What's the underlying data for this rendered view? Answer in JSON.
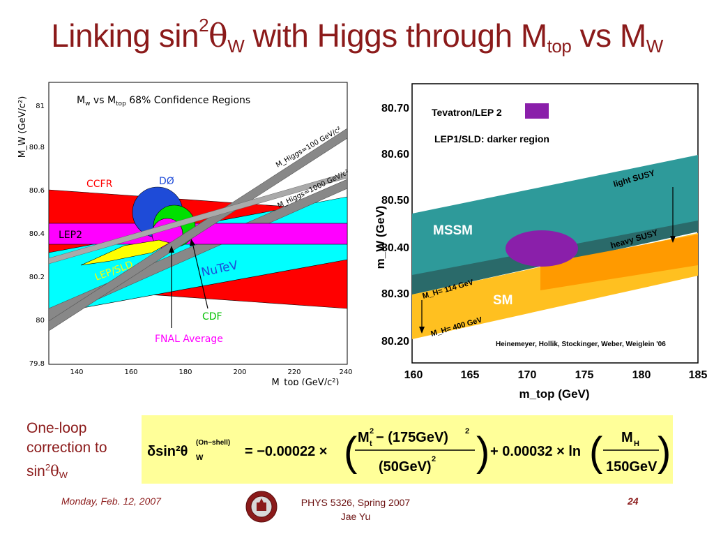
{
  "title": {
    "pre": "Linking sin",
    "sup": "2",
    "theta": "θ",
    "sub_w": "W",
    "mid": " with Higgs through M",
    "sub_top": "top",
    "post": " vs M",
    "sub_w2": "W"
  },
  "left_plot": {
    "title": "M_W vs M_top 68% Confidence Regions",
    "title_parts": {
      "a": "M",
      "b": "w",
      "c": " vs M",
      "d": "top",
      "e": " 68% Confidence Regions"
    },
    "ylabel": "M_W (GeV/c²)",
    "xlabel": "M_top (GeV/c²)",
    "yticks": [
      "81",
      "80.8",
      "80.6",
      "80.4",
      "80.2",
      "80",
      "79.8"
    ],
    "xticks": [
      "140",
      "160",
      "180",
      "200",
      "220",
      "240"
    ],
    "labels": {
      "ccfr": "CCFR",
      "d0": "DØ",
      "lep2": "LEP2",
      "lep_sld": "LEP/SLD",
      "nutev": "NuTeV",
      "cdf": "CDF",
      "fnal": "FNAL Average",
      "mhiggs100": "M_Higgs=100 GeV/c²",
      "mhiggs1000": "M_Higgs=1000 GeV/c²"
    },
    "colors": {
      "ccfr": "#ff0000",
      "nutev": "#00ffff",
      "lep2": "#ff00ff",
      "d0": "#1e4bd8",
      "cdf": "#00e000",
      "fnal": "#ff00ff",
      "lepsld": "#ffff00"
    }
  },
  "right_plot": {
    "ylabel": "m_W (GeV)",
    "xlabel": "m_top (GeV)",
    "yticks": [
      "80.70",
      "80.60",
      "80.50",
      "80.40",
      "80.30",
      "80.20"
    ],
    "xticks": [
      "160",
      "165",
      "170",
      "175",
      "180",
      "185"
    ],
    "legend1": "Tevatron/LEP 2",
    "legend2": "LEP1/SLD: darker region",
    "mssm": "MSSM",
    "sm": "SM",
    "light_susy": "light SUSY",
    "heavy_susy": "heavy SUSY",
    "mh114": "M_H= 114 GeV",
    "mh400": "M_H= 400 GeV",
    "credit": "Heinemeyer, Hollik, Stockinger, Weber, Weiglein '06",
    "colors": {
      "mssm": "#2e9a9a",
      "sm": "#ffb000",
      "ellipse": "#8a1faa"
    }
  },
  "caption": {
    "line1": "One-loop",
    "line2": "correction to",
    "line3_pre": "sin",
    "line3_sup": "2",
    "line3_theta": "θ",
    "line3_sub": "W"
  },
  "formula": {
    "lhs": "δsin²θ",
    "lhs_sup": "(On−shell)",
    "lhs_sub": "W",
    "eq": "= −0.00022 ×",
    "num": "M",
    "num_sup": "2",
    "num_sub": "t",
    "num_rest": " − (175GeV)",
    "num_rest_sup": "2",
    "den": "(50GeV)",
    "den_sup": "2",
    "plus": "+ 0.00032 × ln",
    "mh": "M",
    "mh_sub": "H",
    "mh_den": "150GeV"
  },
  "footer": {
    "date": "Monday, Feb. 12, 2007",
    "course": "PHYS 5326, Spring 2007",
    "author": "Jae Yu",
    "page": "24"
  }
}
